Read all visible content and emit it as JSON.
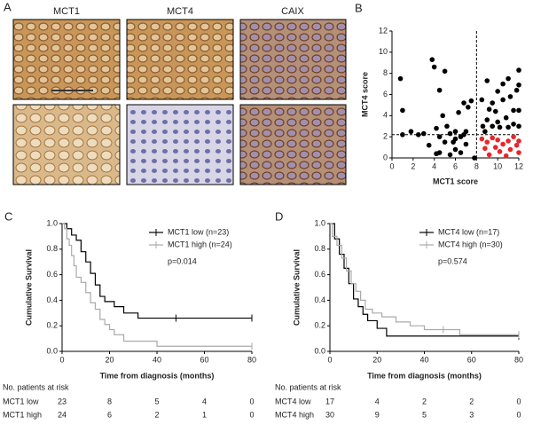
{
  "panel_a": {
    "label": "A",
    "stains": [
      "MCT1",
      "MCT4",
      "CAIX"
    ]
  },
  "chart_data": [
    {
      "type": "scatter",
      "panel_label": "B",
      "x_label": "MCT1 score",
      "y_label": "MCT4 score",
      "xlim": [
        0,
        12
      ],
      "xticks": [
        0,
        2,
        4,
        6,
        8,
        10,
        12
      ],
      "ylim": [
        0,
        12
      ],
      "yticks": [
        0,
        2,
        4,
        6,
        8,
        10,
        12
      ],
      "reference_lines": {
        "x": 8,
        "y": 2.2
      },
      "series": [
        {
          "color": "#000000",
          "x": [
            0.8,
            1,
            1,
            1.8,
            2.5,
            3,
            3.5,
            3.8,
            4,
            4.2,
            4.2,
            4.5,
            4.5,
            4.5,
            4.8,
            5,
            5,
            5.2,
            5.5,
            5.5,
            5.8,
            6,
            6,
            6,
            6.3,
            6.5,
            6.5,
            6.8,
            6.8,
            7,
            7,
            7.2,
            7.5,
            7.8,
            8.5,
            8.6,
            8.8,
            9,
            9,
            9.2,
            9.5,
            9.5,
            9.8,
            10,
            10,
            10.2,
            10.5,
            10.5,
            10.8,
            11,
            11,
            11.2,
            11.5,
            11.5,
            11.8,
            12,
            12,
            12,
            12
          ],
          "y": [
            7.5,
            4.5,
            2.2,
            2.5,
            2.2,
            2.3,
            1.2,
            9.3,
            8.6,
            0.4,
            2.8,
            2,
            6.4,
            0.5,
            4,
            8.2,
            1.5,
            3,
            2.3,
            0.3,
            1.5,
            2.5,
            1.8,
            0.8,
            4.3,
            2,
            0.5,
            5.2,
            2.2,
            1.3,
            2.5,
            4.8,
            5.4,
            0,
            5.5,
            3,
            2.5,
            7.3,
            3.6,
            4.6,
            3,
            5.2,
            4.4,
            6.3,
            3.4,
            2.9,
            7,
            5.5,
            3.8,
            7.5,
            2.9,
            5.8,
            4.5,
            3.2,
            6.4,
            8.3,
            6.9,
            4.5,
            3
          ]
        },
        {
          "color": "#e8262a",
          "x": [
            8.5,
            8.8,
            9,
            9.2,
            9.5,
            9.8,
            10,
            10.2,
            10.5,
            10.8,
            11,
            11.2,
            11.5,
            11.8,
            12,
            12
          ],
          "y": [
            1.8,
            0.9,
            1.5,
            0.3,
            1.9,
            1,
            1.7,
            0.6,
            1.3,
            0.2,
            1.6,
            0.8,
            2,
            1.2,
            0.5,
            1.6
          ]
        }
      ]
    },
    {
      "type": "km",
      "panel_label": "C",
      "x_label": "Time from diagnosis (months)",
      "y_label": "Cumulative Survival",
      "xlim": [
        0,
        80
      ],
      "xticks": [
        0,
        20,
        40,
        60,
        80
      ],
      "ylim": [
        0,
        1
      ],
      "yticks": [
        {
          "value": 0,
          "label": "0.0"
        },
        0.2,
        0.4,
        0.6,
        0.8,
        {
          "value": 1,
          "label": "1.0"
        }
      ],
      "annotation": "p=0.014",
      "legend": "upper right",
      "series": [
        {
          "name": "MCT1 low (n=23)",
          "color": "#000000",
          "x": [
            0,
            2,
            4,
            6,
            8,
            10,
            12,
            14,
            16,
            18,
            22,
            26,
            32,
            80
          ],
          "values": [
            1,
            0.96,
            0.91,
            0.87,
            0.78,
            0.7,
            0.61,
            0.52,
            0.43,
            0.39,
            0.35,
            0.3,
            0.26,
            0.26
          ],
          "censored": {
            "x": [
              48,
              80
            ],
            "values": [
              0.26,
              0.26
            ]
          }
        },
        {
          "name": "MCT1 high (n=24)",
          "color": "#aaaaaa",
          "x": [
            0,
            1,
            2,
            3,
            4,
            5,
            6,
            8,
            10,
            12,
            14,
            16,
            18,
            20,
            22,
            26,
            34,
            40,
            80
          ],
          "values": [
            1,
            0.96,
            0.88,
            0.83,
            0.75,
            0.67,
            0.58,
            0.54,
            0.46,
            0.38,
            0.33,
            0.25,
            0.21,
            0.17,
            0.13,
            0.08,
            0.08,
            0.04,
            0.04
          ],
          "censored": {
            "x": [
              80
            ],
            "values": [
              0.04
            ]
          }
        }
      ],
      "risk_table": {
        "title": "No. patients at risk",
        "rows": [
          {
            "name": "MCT1 low",
            "values": [
              23,
              8,
              5,
              4,
              0
            ]
          },
          {
            "name": "MCT1 high",
            "values": [
              24,
              6,
              2,
              1,
              0
            ]
          }
        ]
      }
    },
    {
      "type": "km",
      "panel_label": "D",
      "x_label": "Time from diagnosis (months)",
      "y_label": "Cumulative Survival",
      "xlim": [
        0,
        80
      ],
      "xticks": [
        0,
        20,
        40,
        60,
        80
      ],
      "ylim": [
        0,
        1
      ],
      "yticks": [
        {
          "value": 0,
          "label": "0.0"
        },
        0.2,
        0.4,
        0.6,
        0.8,
        {
          "value": 1,
          "label": "1.0"
        }
      ],
      "annotation": "p=0.574",
      "legend": "upper right",
      "series": [
        {
          "name": "MCT4 low (n=17)",
          "color": "#000000",
          "x": [
            0,
            2,
            4,
            6,
            8,
            10,
            12,
            14,
            16,
            20,
            24,
            80
          ],
          "values": [
            1,
            0.88,
            0.76,
            0.65,
            0.53,
            0.41,
            0.35,
            0.29,
            0.24,
            0.18,
            0.12,
            0.12
          ],
          "censored": {
            "x": [
              80
            ],
            "values": [
              0.12
            ]
          }
        },
        {
          "name": "MCT4 high (n=30)",
          "color": "#aaaaaa",
          "x": [
            0,
            1,
            3,
            5,
            7,
            9,
            11,
            13,
            15,
            18,
            22,
            28,
            34,
            40,
            55,
            80
          ],
          "values": [
            1,
            0.9,
            0.83,
            0.73,
            0.63,
            0.53,
            0.47,
            0.4,
            0.33,
            0.3,
            0.27,
            0.23,
            0.2,
            0.17,
            0.13,
            0.13
          ],
          "censored": {
            "x": [
              48,
              80
            ],
            "values": [
              0.17,
              0.13
            ]
          }
        }
      ],
      "risk_table": {
        "title": "No. patients at risk",
        "rows": [
          {
            "name": "MCT4 low",
            "values": [
              17,
              4,
              2,
              2,
              0
            ]
          },
          {
            "name": "MCT4 high",
            "values": [
              30,
              9,
              5,
              3,
              0
            ]
          }
        ]
      }
    }
  ]
}
